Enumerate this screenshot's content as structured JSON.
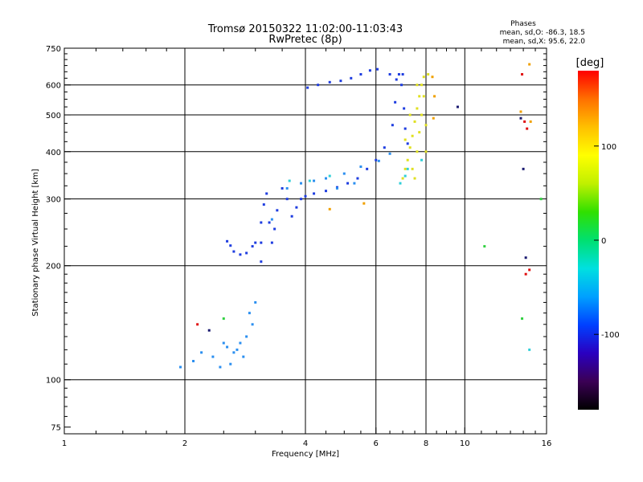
{
  "chart_data": {
    "type": "scatter",
    "title": "Tromsø 20150322 11:02:00-11:03:43",
    "subtitle": "RwPretec (8p)",
    "xlabel": "Frequency [MHz]",
    "ylabel": "Stationary phase Virtual Height [km]",
    "x_scale": "log",
    "y_scale": "log",
    "xlim": [
      1,
      16
    ],
    "ylim": [
      72,
      750
    ],
    "x_ticks": [
      1,
      2,
      4,
      6,
      8,
      10,
      16
    ],
    "y_ticks": [
      75,
      100,
      200,
      300,
      400,
      500,
      600,
      750
    ],
    "grid": true,
    "legend": {
      "title": "Phases",
      "lines": [
        "mean, sd,O: -86.3, 18.5",
        "mean, sd,X:  95.6, 22.0"
      ]
    },
    "colorbar": {
      "label": "[deg]",
      "range": [
        -180,
        180
      ],
      "ticks": [
        100,
        0,
        -100
      ],
      "colors": [
        "#000000",
        "#3b0055",
        "#2a00c0",
        "#0040ff",
        "#00a0ff",
        "#00e0e0",
        "#00e070",
        "#30e000",
        "#c0f000",
        "#ffff00",
        "#ffc000",
        "#ff7000",
        "#ff0000"
      ]
    },
    "series": [
      {
        "color": "#1e3de0",
        "points": [
          [
            2.55,
            232
          ],
          [
            2.6,
            226
          ],
          [
            2.65,
            218
          ],
          [
            2.75,
            214
          ],
          [
            2.85,
            216
          ],
          [
            2.95,
            225
          ],
          [
            3.0,
            230
          ],
          [
            3.1,
            205
          ],
          [
            3.1,
            230
          ],
          [
            3.1,
            260
          ],
          [
            3.15,
            290
          ],
          [
            3.2,
            310
          ],
          [
            3.25,
            260
          ],
          [
            3.3,
            230
          ],
          [
            3.35,
            250
          ],
          [
            3.4,
            280
          ],
          [
            3.5,
            320
          ],
          [
            3.6,
            300
          ],
          [
            3.7,
            270
          ],
          [
            3.8,
            285
          ],
          [
            3.9,
            300
          ],
          [
            4.0,
            305
          ],
          [
            4.2,
            310
          ],
          [
            4.5,
            315
          ],
          [
            4.8,
            322
          ],
          [
            5.1,
            330
          ],
          [
            5.4,
            340
          ],
          [
            5.7,
            360
          ],
          [
            6.0,
            380
          ],
          [
            6.3,
            410
          ],
          [
            6.6,
            470
          ],
          [
            6.7,
            540
          ],
          [
            6.75,
            620
          ],
          [
            6.85,
            640
          ],
          [
            6.95,
            600
          ],
          [
            7.05,
            520
          ],
          [
            7.1,
            460
          ],
          [
            7.2,
            420
          ],
          [
            4.05,
            590
          ],
          [
            4.3,
            600
          ],
          [
            4.6,
            610
          ],
          [
            4.9,
            615
          ],
          [
            5.2,
            625
          ],
          [
            5.5,
            640
          ],
          [
            5.8,
            655
          ],
          [
            6.05,
            660
          ],
          [
            6.5,
            640
          ],
          [
            7.0,
            640
          ]
        ]
      },
      {
        "color": "#2b8ff0",
        "points": [
          [
            1.95,
            108
          ],
          [
            2.1,
            112
          ],
          [
            2.2,
            118
          ],
          [
            2.35,
            115
          ],
          [
            2.45,
            108
          ],
          [
            2.55,
            122
          ],
          [
            2.65,
            118
          ],
          [
            2.75,
            125
          ],
          [
            2.85,
            130
          ],
          [
            2.95,
            140
          ],
          [
            3.0,
            160
          ],
          [
            2.8,
            115
          ],
          [
            2.6,
            110
          ],
          [
            2.9,
            150
          ],
          [
            2.7,
            120
          ],
          [
            2.5,
            125
          ],
          [
            3.6,
            320
          ],
          [
            3.9,
            330
          ],
          [
            4.2,
            335
          ],
          [
            4.5,
            340
          ],
          [
            5.0,
            350
          ],
          [
            5.5,
            365
          ],
          [
            6.1,
            378
          ],
          [
            6.5,
            395
          ],
          [
            4.8,
            320
          ],
          [
            5.3,
            330
          ],
          [
            3.3,
            265
          ]
        ]
      },
      {
        "color": "#2fcfd8",
        "points": [
          [
            6.9,
            330
          ],
          [
            7.1,
            345
          ],
          [
            7.2,
            360
          ],
          [
            3.65,
            335
          ],
          [
            4.1,
            335
          ],
          [
            4.6,
            345
          ],
          [
            7.8,
            380
          ],
          [
            14.5,
            120
          ]
        ]
      },
      {
        "color": "#e0e020",
        "points": [
          [
            7.0,
            340
          ],
          [
            7.1,
            360
          ],
          [
            7.2,
            380
          ],
          [
            7.3,
            410
          ],
          [
            7.4,
            440
          ],
          [
            7.5,
            480
          ],
          [
            7.6,
            520
          ],
          [
            7.7,
            560
          ],
          [
            7.8,
            600
          ],
          [
            7.9,
            630
          ],
          [
            7.6,
            400
          ],
          [
            7.7,
            450
          ],
          [
            7.8,
            500
          ],
          [
            7.5,
            340
          ],
          [
            7.4,
            360
          ],
          [
            7.9,
            560
          ],
          [
            8.0,
            470
          ],
          [
            8.0,
            400
          ],
          [
            7.3,
            500
          ],
          [
            7.6,
            600
          ],
          [
            7.1,
            430
          ],
          [
            8.1,
            640
          ]
        ]
      },
      {
        "color": "#f0a000",
        "points": [
          [
            4.6,
            282
          ],
          [
            5.6,
            292
          ],
          [
            8.3,
            630
          ],
          [
            8.4,
            560
          ],
          [
            8.35,
            490
          ],
          [
            14.5,
            680
          ],
          [
            13.8,
            510
          ],
          [
            14.6,
            480
          ]
        ]
      },
      {
        "color": "#e01010",
        "points": [
          [
            2.15,
            140
          ],
          [
            14.2,
            190
          ],
          [
            14.5,
            195
          ],
          [
            13.9,
            640
          ],
          [
            14.3,
            460
          ],
          [
            14.1,
            480
          ]
        ]
      },
      {
        "color": "#30d040",
        "points": [
          [
            2.5,
            145
          ],
          [
            13.9,
            145
          ],
          [
            15.5,
            300
          ],
          [
            11.2,
            225
          ]
        ]
      },
      {
        "color": "#1a1a70",
        "points": [
          [
            14.0,
            360
          ],
          [
            14.2,
            210
          ],
          [
            13.8,
            490
          ],
          [
            9.6,
            525
          ],
          [
            2.3,
            135
          ]
        ]
      }
    ]
  }
}
